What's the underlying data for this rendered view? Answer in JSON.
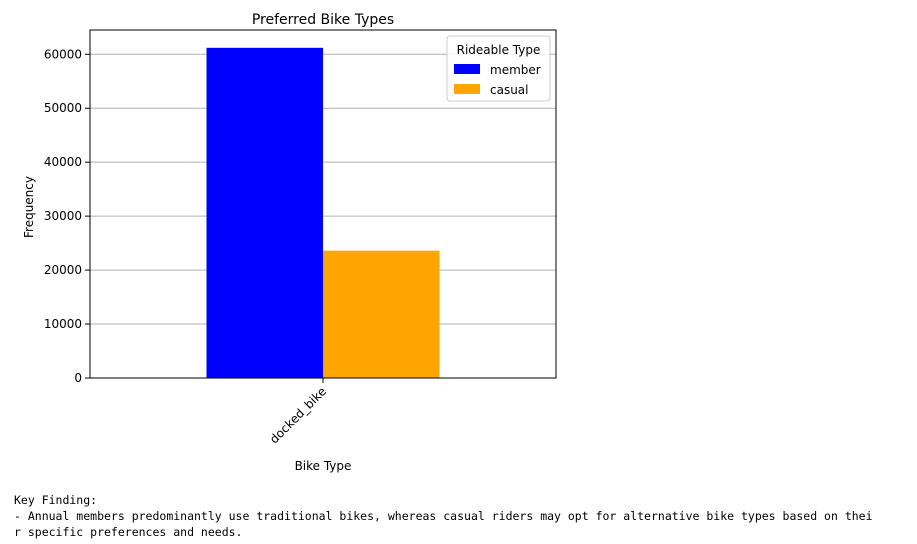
{
  "chart_data": {
    "type": "bar",
    "title": "Preferred Bike Types",
    "xlabel": "Bike Type",
    "ylabel": "Frequency",
    "categories": [
      "docked_bike"
    ],
    "series": [
      {
        "name": "member",
        "values": [
          61200
        ],
        "color": "#0000ff"
      },
      {
        "name": "casual",
        "values": [
          23600
        ],
        "color": "#ffa500"
      }
    ],
    "ylim": [
      0,
      64500
    ],
    "yticks": [
      0,
      10000,
      20000,
      30000,
      40000,
      50000,
      60000
    ],
    "grid": "y",
    "legend": {
      "title": "Rideable Type",
      "placement": "top-right"
    }
  },
  "output": {
    "line1": "Key Finding:",
    "line2": "- Annual members predominantly use traditional bikes, whereas casual riders may opt for alternative bike types based on thei",
    "line3": "r specific preferences and needs."
  }
}
